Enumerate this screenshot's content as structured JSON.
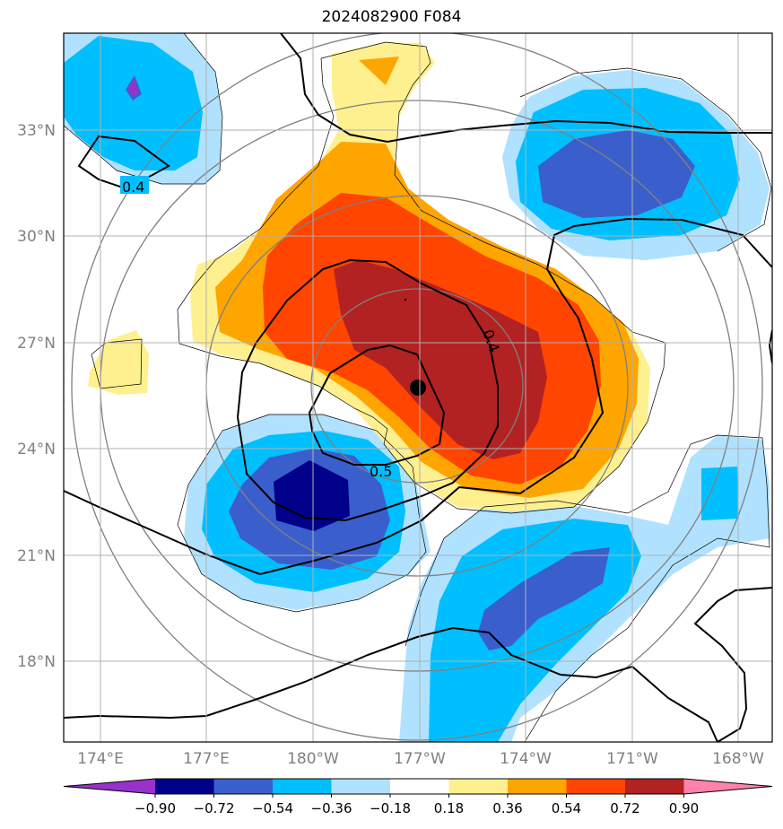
{
  "title": "2024082900 F084",
  "map": {
    "lat_labels": [
      "33°N",
      "30°N",
      "27°N",
      "24°N",
      "21°N",
      "18°N"
    ],
    "lon_labels": [
      "174°E",
      "177°E",
      "180°W",
      "177°W",
      "174°W",
      "171°W",
      "168°W"
    ],
    "contour_labels": [
      "0.4",
      "0.4",
      "0.5"
    ],
    "center_marker": {
      "lat": 25.7,
      "lon": -177.0
    }
  },
  "colorbar": {
    "tick_labels": [
      "−0.90",
      "−0.72",
      "−0.54",
      "−0.36",
      "−0.18",
      "0.18",
      "0.36",
      "0.54",
      "0.72",
      "0.90"
    ],
    "colors": [
      "#9932cc",
      "#00008b",
      "#3a5fcd",
      "#00bfff",
      "#b0e2ff",
      "#ffffff",
      "#fff08f",
      "#ffa500",
      "#ff4500",
      "#b22222",
      "#ff82ab"
    ]
  },
  "colors": {
    "light_blue": "#b0e2ff",
    "sky_blue": "#00bfff",
    "royal_blue": "#3a5fcd",
    "navy": "#00008b",
    "purple": "#9932cc",
    "yellow": "#fff08f",
    "orange": "#ffa500",
    "red_orange": "#ff4500",
    "firebrick": "#b22222"
  }
}
